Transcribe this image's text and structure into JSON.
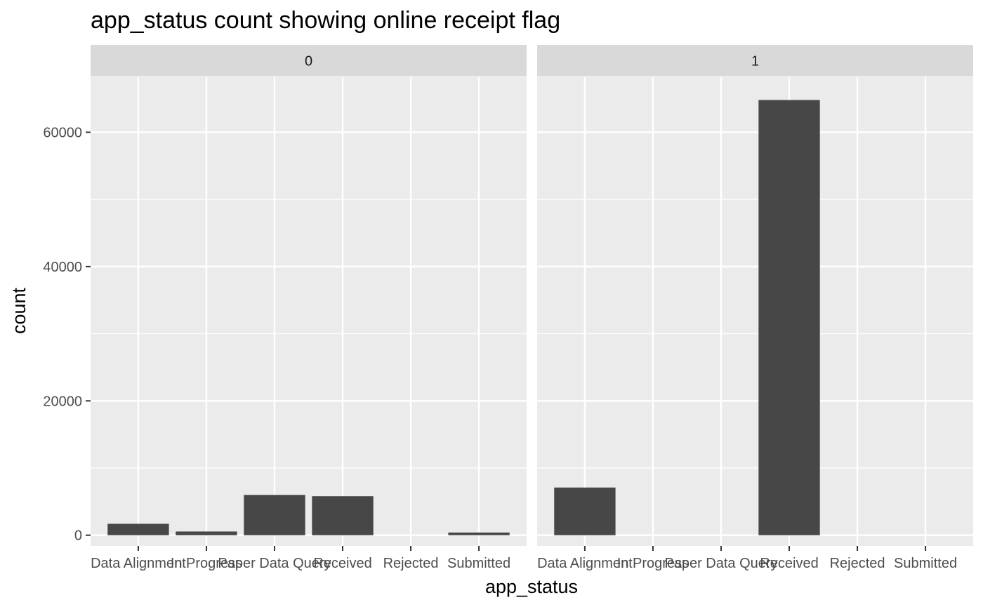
{
  "colors": {
    "panel_background": "#ebebeb",
    "strip_background": "#d9d9d9",
    "grid_line": "#ffffff",
    "bar_fill": "#474747",
    "tick_color": "#333333"
  },
  "chart_data": {
    "type": "bar",
    "title": "app_status count showing online receipt flag",
    "xlabel": "app_status",
    "ylabel": "count",
    "ylim": [
      -1600,
      68200
    ],
    "y_ticks": [
      0,
      20000,
      40000,
      60000
    ],
    "y_tick_labels": [
      "0",
      "20000",
      "40000",
      "60000"
    ],
    "grid": true,
    "facet_variable_values": [
      "0",
      "1"
    ],
    "categories": [
      "Data Alignment",
      "In Progress",
      "Paper Data Query",
      "Received",
      "Rejected",
      "Submitted"
    ],
    "panels": [
      {
        "facet": "0",
        "values": [
          1700,
          550,
          6000,
          5800,
          0,
          400
        ]
      },
      {
        "facet": "1",
        "values": [
          7100,
          0,
          0,
          64800,
          0,
          0
        ]
      }
    ]
  }
}
